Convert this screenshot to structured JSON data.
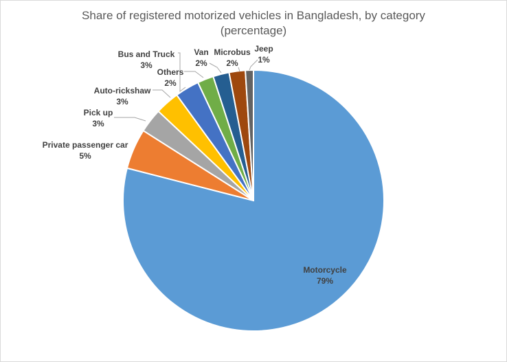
{
  "chart_data": {
    "type": "pie",
    "title": "Share of registered motorized vehicles in Bangladesh, by category",
    "subtitle": "(percentage)",
    "slices": [
      {
        "label": "Motorcycle",
        "value": 79,
        "value_label": "79%",
        "color": "#5b9bd5"
      },
      {
        "label": "Private passenger car",
        "value": 5,
        "value_label": "5%",
        "color": "#ed7d31"
      },
      {
        "label": "Pick up",
        "value": 3,
        "value_label": "3%",
        "color": "#a5a5a5"
      },
      {
        "label": "Auto-rickshaw",
        "value": 3,
        "value_label": "3%",
        "color": "#ffc000"
      },
      {
        "label": "Bus and Truck",
        "value": 3,
        "value_label": "3%",
        "color": "#4472c4"
      },
      {
        "label": "Others",
        "value": 2,
        "value_label": "2%",
        "color": "#70ad47"
      },
      {
        "label": "Van",
        "value": 2,
        "value_label": "2%",
        "color": "#255e91"
      },
      {
        "label": "Microbus",
        "value": 2,
        "value_label": "2%",
        "color": "#9e480e"
      },
      {
        "label": "Jeep",
        "value": 1,
        "value_label": "1%",
        "color": "#636363"
      }
    ]
  }
}
